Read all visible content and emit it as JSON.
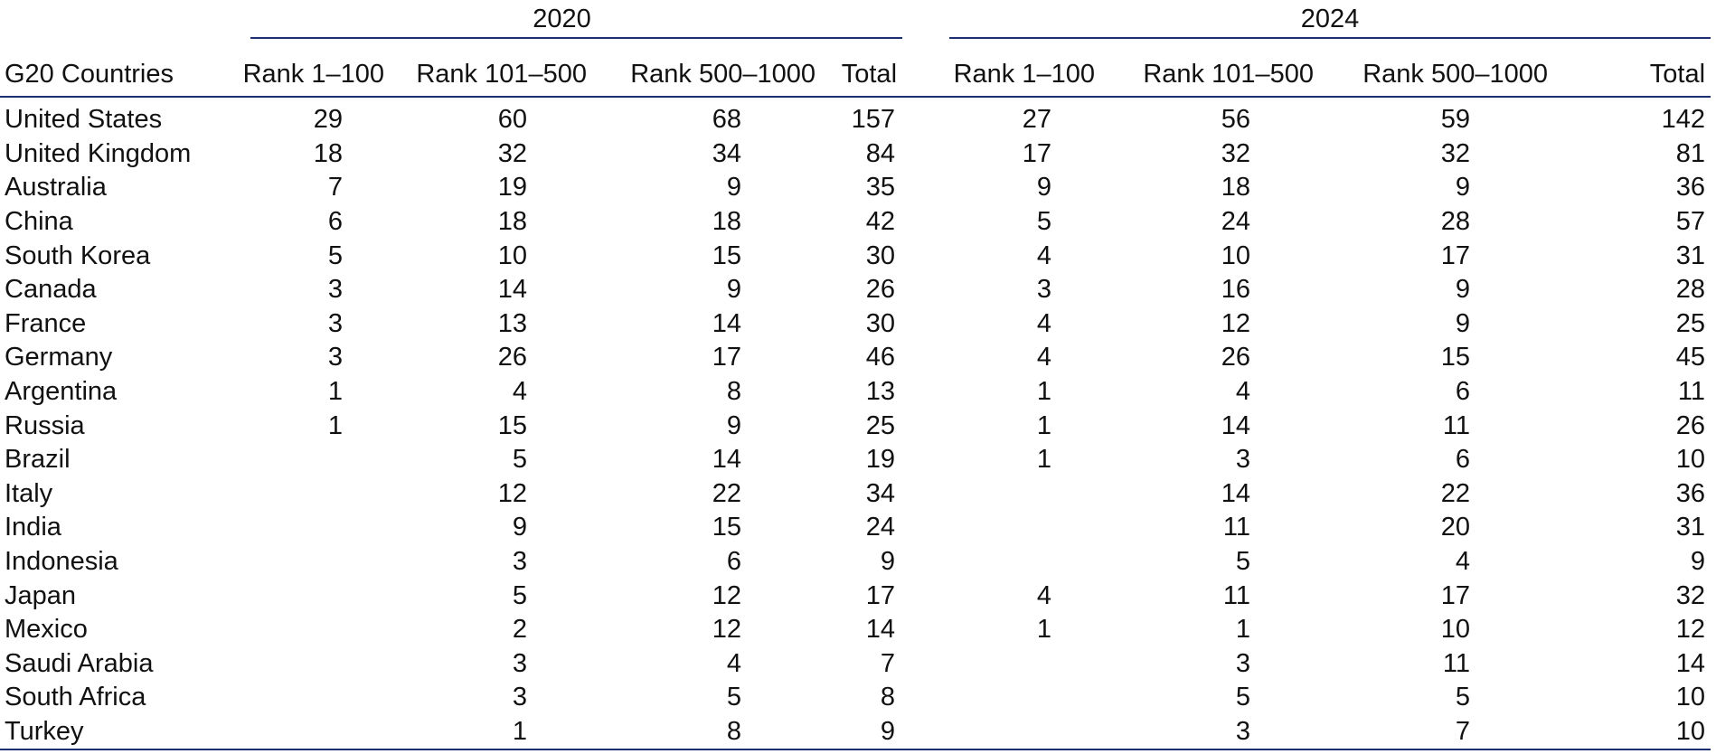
{
  "table": {
    "country_header": "G20 Countries",
    "groups": [
      {
        "year": "2020",
        "columns": [
          "Rank 1–100",
          "Rank 101–500",
          "Rank 500–1000",
          "Total"
        ]
      },
      {
        "year": "2024",
        "columns": [
          "Rank 1–100",
          "Rank 101–500",
          "Rank 500–1000",
          "Total"
        ]
      }
    ],
    "rows": [
      {
        "country": "United States",
        "v2020": [
          "29",
          "60",
          "68",
          "157"
        ],
        "v2024": [
          "27",
          "56",
          "59",
          "142"
        ]
      },
      {
        "country": "United Kingdom",
        "v2020": [
          "18",
          "32",
          "34",
          "84"
        ],
        "v2024": [
          "17",
          "32",
          "32",
          "81"
        ]
      },
      {
        "country": "Australia",
        "v2020": [
          "7",
          "19",
          "9",
          "35"
        ],
        "v2024": [
          "9",
          "18",
          "9",
          "36"
        ]
      },
      {
        "country": "China",
        "v2020": [
          "6",
          "18",
          "18",
          "42"
        ],
        "v2024": [
          "5",
          "24",
          "28",
          "57"
        ]
      },
      {
        "country": "South Korea",
        "v2020": [
          "5",
          "10",
          "15",
          "30"
        ],
        "v2024": [
          "4",
          "10",
          "17",
          "31"
        ]
      },
      {
        "country": "Canada",
        "v2020": [
          "3",
          "14",
          "9",
          "26"
        ],
        "v2024": [
          "3",
          "16",
          "9",
          "28"
        ]
      },
      {
        "country": "France",
        "v2020": [
          "3",
          "13",
          "14",
          "30"
        ],
        "v2024": [
          "4",
          "12",
          "9",
          "25"
        ]
      },
      {
        "country": "Germany",
        "v2020": [
          "3",
          "26",
          "17",
          "46"
        ],
        "v2024": [
          "4",
          "26",
          "15",
          "45"
        ]
      },
      {
        "country": "Argentina",
        "v2020": [
          "1",
          "4",
          "8",
          "13"
        ],
        "v2024": [
          "1",
          "4",
          "6",
          "11"
        ]
      },
      {
        "country": "Russia",
        "v2020": [
          "1",
          "15",
          "9",
          "25"
        ],
        "v2024": [
          "1",
          "14",
          "11",
          "26"
        ]
      },
      {
        "country": "Brazil",
        "v2020": [
          "",
          "5",
          "14",
          "19"
        ],
        "v2024": [
          "1",
          "3",
          "6",
          "10"
        ]
      },
      {
        "country": "Italy",
        "v2020": [
          "",
          "12",
          "22",
          "34"
        ],
        "v2024": [
          "",
          "14",
          "22",
          "36"
        ]
      },
      {
        "country": "India",
        "v2020": [
          "",
          "9",
          "15",
          "24"
        ],
        "v2024": [
          "",
          "11",
          "20",
          "31"
        ]
      },
      {
        "country": "Indonesia",
        "v2020": [
          "",
          "3",
          "6",
          "9"
        ],
        "v2024": [
          "",
          "5",
          "4",
          "9"
        ]
      },
      {
        "country": "Japan",
        "v2020": [
          "",
          "5",
          "12",
          "17"
        ],
        "v2024": [
          "4",
          "11",
          "17",
          "32"
        ]
      },
      {
        "country": "Mexico",
        "v2020": [
          "",
          "2",
          "12",
          "14"
        ],
        "v2024": [
          "1",
          "1",
          "10",
          "12"
        ]
      },
      {
        "country": "Saudi Arabia",
        "v2020": [
          "",
          "3",
          "4",
          "7"
        ],
        "v2024": [
          "",
          "3",
          "11",
          "14"
        ]
      },
      {
        "country": "South Africa",
        "v2020": [
          "",
          "3",
          "5",
          "8"
        ],
        "v2024": [
          "",
          "5",
          "5",
          "10"
        ]
      },
      {
        "country": "Turkey",
        "v2020": [
          "",
          "1",
          "8",
          "9"
        ],
        "v2024": [
          "",
          "3",
          "7",
          "10"
        ]
      }
    ]
  },
  "colors": {
    "rule": "#1d2f73",
    "text": "#111111"
  }
}
